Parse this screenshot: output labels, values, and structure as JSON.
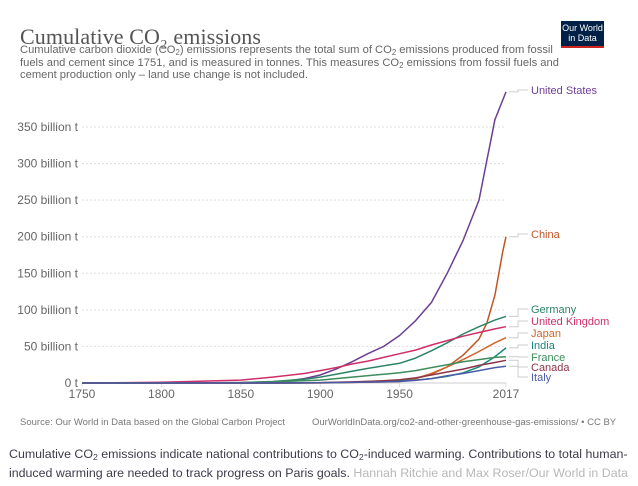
{
  "header": {
    "title": "Cumulative CO₂ emissions",
    "subtitle_parts": [
      "Cumulative carbon dioxide (CO",
      "2",
      ") emissions represents the total sum of CO",
      "2",
      " emissions produced from fossil fuels and cement since 1751, and is measured in tonnes. This measures CO",
      "2",
      " emissions from fossil fuels and cement production only – land use change is not included."
    ],
    "logo_line1": "Our World",
    "logo_line2": "in Data"
  },
  "footer": {
    "source": "Source: Our World in Data based on the Global Carbon Project",
    "url": "OurWorldInData.org/co2-and-other-greenhouse-gas-emissions/ • CC BY"
  },
  "caption": {
    "part1": "Cumulative CO",
    "sub1": "2",
    "part2": " emissions indicate national contributions to CO",
    "sub2": "2",
    "part3": "-induced warming. Contributions to total human-induced warming are needed to track progress on Paris goals.",
    "credit": " Hannah Ritchie and Max Roser/Our World in Data"
  },
  "chart_data": {
    "type": "line",
    "title": "Cumulative CO₂ emissions",
    "xlabel": "",
    "ylabel": "",
    "xlim": [
      1750,
      2017
    ],
    "ylim": [
      0,
      400
    ],
    "x_ticks": [
      1750,
      1800,
      1850,
      1900,
      1950,
      2017
    ],
    "y_ticks": [
      {
        "value": 0,
        "label": "0 t"
      },
      {
        "value": 50,
        "label": "50 billion t"
      },
      {
        "value": 100,
        "label": "100 billion t"
      },
      {
        "value": 150,
        "label": "150 billion t"
      },
      {
        "value": 200,
        "label": "200 billion t"
      },
      {
        "value": 250,
        "label": "250 billion t"
      },
      {
        "value": 300,
        "label": "300 billion t"
      },
      {
        "value": 350,
        "label": "350 billion t"
      }
    ],
    "units": "billion tonnes",
    "grid": "horizontal-dotted",
    "legend": "right (end-of-line labels)",
    "series": [
      {
        "name": "United States",
        "color": "#6d3e91",
        "x": [
          1800,
          1850,
          1870,
          1880,
          1890,
          1900,
          1910,
          1920,
          1930,
          1940,
          1950,
          1960,
          1970,
          1980,
          1990,
          2000,
          2010,
          2017
        ],
        "y": [
          0.0,
          0.5,
          1.5,
          3,
          6,
          11,
          19,
          29,
          40,
          50,
          65,
          85,
          110,
          150,
          195,
          250,
          360,
          398
        ]
      },
      {
        "name": "China",
        "color": "#c15526",
        "x": [
          1900,
          1950,
          1960,
          1970,
          1980,
          1990,
          2000,
          2005,
          2010,
          2015,
          2017
        ],
        "y": [
          0,
          2,
          6,
          12,
          22,
          38,
          60,
          82,
          120,
          180,
          200
        ]
      },
      {
        "name": "Germany",
        "color": "#2c8465",
        "x": [
          1800,
          1850,
          1870,
          1890,
          1900,
          1910,
          1920,
          1930,
          1950,
          1960,
          1970,
          1980,
          1990,
          2000,
          2010,
          2017
        ],
        "y": [
          0,
          0.5,
          2,
          5,
          8,
          12,
          16,
          20,
          27,
          34,
          44,
          55,
          67,
          77,
          86,
          91
        ]
      },
      {
        "name": "United Kingdom",
        "color": "#cf2e69",
        "x": [
          1750,
          1800,
          1850,
          1870,
          1890,
          1900,
          1910,
          1920,
          1930,
          1940,
          1950,
          1960,
          1970,
          1980,
          1990,
          2000,
          2010,
          2017
        ],
        "y": [
          0,
          1,
          4,
          8,
          13,
          17,
          21,
          26,
          30,
          35,
          40,
          45,
          52,
          58,
          64,
          69,
          74,
          77
        ]
      },
      {
        "name": "Japan",
        "color": "#d0652c",
        "x": [
          1880,
          1900,
          1920,
          1940,
          1950,
          1960,
          1970,
          1980,
          1990,
          2000,
          2010,
          2017
        ],
        "y": [
          0,
          0.3,
          1,
          3,
          4,
          6,
          13,
          22,
          32,
          43,
          55,
          62
        ]
      },
      {
        "name": "India",
        "color": "#18887a",
        "x": [
          1880,
          1900,
          1920,
          1940,
          1950,
          1960,
          1970,
          1980,
          1990,
          2000,
          2010,
          2017
        ],
        "y": [
          0,
          0.3,
          1,
          2,
          3,
          4,
          6,
          9,
          14,
          22,
          36,
          48
        ]
      },
      {
        "name": "France",
        "color": "#3c8d5c",
        "x": [
          1800,
          1850,
          1870,
          1900,
          1920,
          1940,
          1950,
          1960,
          1970,
          1980,
          1990,
          2000,
          2010,
          2017
        ],
        "y": [
          0,
          0.5,
          1.5,
          4,
          8,
          12,
          14,
          17,
          21,
          25,
          29,
          32,
          35,
          36
        ]
      },
      {
        "name": "Canada",
        "color": "#8c3548",
        "x": [
          1870,
          1900,
          1920,
          1940,
          1950,
          1960,
          1970,
          1980,
          1990,
          2000,
          2010,
          2017
        ],
        "y": [
          0,
          0.5,
          1.5,
          3,
          4.5,
          7,
          11,
          15,
          19,
          24,
          28,
          31
        ]
      },
      {
        "name": "Italy",
        "color": "#4c5ba8",
        "x": [
          1870,
          1900,
          1920,
          1940,
          1950,
          1960,
          1970,
          1980,
          1990,
          2000,
          2010,
          2017
        ],
        "y": [
          0,
          0.3,
          0.8,
          1.5,
          2,
          3.5,
          6,
          10,
          13,
          17,
          21,
          23
        ]
      }
    ]
  }
}
